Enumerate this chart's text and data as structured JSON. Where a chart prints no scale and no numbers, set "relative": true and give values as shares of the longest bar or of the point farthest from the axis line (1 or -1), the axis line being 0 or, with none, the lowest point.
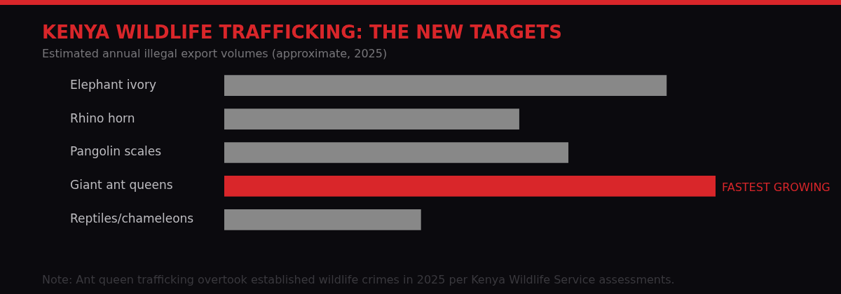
{
  "chart_data": {
    "type": "bar",
    "orientation": "horizontal",
    "relative": true,
    "title": "KENYA WILDLIFE TRAFFICKING: THE NEW TARGETS",
    "subtitle": "Estimated annual illegal export volumes (approximate, 2025)",
    "categories": [
      "Elephant ivory",
      "Rhino horn",
      "Pangolin scales",
      "Giant ant queens",
      "Reptiles/chameleons"
    ],
    "values": [
      0.9,
      0.6,
      0.7,
      1,
      0.4
    ],
    "colors": [
      "#888888",
      "#888888",
      "#888888",
      "#d9262a",
      "#888888"
    ],
    "annotations": [
      {
        "text": "FASTEST GROWING",
        "x": 1,
        "y": "Giant ant queens"
      },
      "Note: Ant queen trafficking overtook established wildlife crimes in 2025 per Kenya Wildlife Service assessments."
    ]
  }
}
